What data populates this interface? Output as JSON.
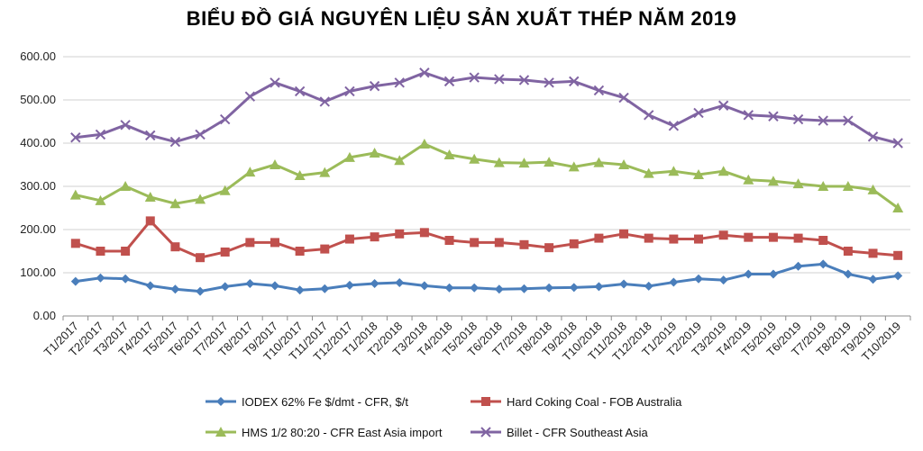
{
  "chart_data": {
    "type": "line",
    "title": "BIỂU ĐỒ GIÁ NGUYÊN LIỆU SẢN XUẤT THÉP NĂM 2019",
    "xlabel": "",
    "ylabel": "",
    "ylim": [
      0,
      600
    ],
    "y_ticks": [
      "0.00",
      "100.00",
      "200.00",
      "300.00",
      "400.00",
      "500.00",
      "600.00"
    ],
    "grid": "horizontal",
    "legend_position": "bottom",
    "categories": [
      "T1/2017",
      "T2/2017",
      "T3/2017",
      "T4/2017",
      "T5/2017",
      "T6/2017",
      "T7/2017",
      "T8/2017",
      "T9/2017",
      "T10/2017",
      "T11/2017",
      "T12/2017",
      "T1/2018",
      "T2/2018",
      "T3/2018",
      "T4/2018",
      "T5/2018",
      "T6/2018",
      "T7/2018",
      "T8/2018",
      "T9/2018",
      "T10/2018",
      "T11/2018",
      "T12/2018",
      "T1/2019",
      "T2/2019",
      "T3/2019",
      "T4/2019",
      "T5/2019",
      "T6/2019",
      "T7/2019",
      "T8/2019",
      "T9/2019",
      "T10/2019"
    ],
    "series": [
      {
        "name": "IODEX 62% Fe $/dmt - CFR, $/t",
        "color": "#4a7ebb",
        "marker": "diamond",
        "values": [
          80,
          88,
          86,
          70,
          62,
          57,
          68,
          75,
          70,
          60,
          63,
          71,
          75,
          77,
          70,
          65,
          65,
          62,
          63,
          65,
          66,
          68,
          74,
          69,
          78,
          86,
          83,
          97,
          97,
          115,
          120,
          97,
          85,
          93
        ]
      },
      {
        "name": "Hard Coking Coal - FOB Australia",
        "color": "#c0504d",
        "marker": "square",
        "values": [
          168,
          150,
          150,
          220,
          160,
          135,
          148,
          170,
          170,
          150,
          155,
          178,
          183,
          190,
          193,
          175,
          170,
          170,
          165,
          158,
          167,
          180,
          190,
          180,
          178,
          178,
          187,
          182,
          182,
          180,
          175,
          150,
          145,
          140
        ]
      },
      {
        "name": "HMS 1/2 80:20 - CFR East Asia import",
        "color": "#9bbb59",
        "marker": "triangle",
        "values": [
          280,
          267,
          300,
          275,
          260,
          270,
          290,
          333,
          350,
          325,
          332,
          367,
          377,
          360,
          398,
          373,
          363,
          355,
          354,
          356,
          345,
          355,
          350,
          330,
          335,
          327,
          335,
          315,
          312,
          306,
          300,
          300,
          292,
          250
        ]
      },
      {
        "name": "Billet - CFR Southeast Asia",
        "color": "#8064a2",
        "marker": "x",
        "values": [
          413,
          420,
          442,
          418,
          403,
          420,
          455,
          508,
          540,
          520,
          496,
          520,
          532,
          540,
          563,
          543,
          552,
          548,
          546,
          540,
          543,
          522,
          505,
          465,
          440,
          470,
          487,
          465,
          462,
          455,
          452,
          452,
          415,
          400
        ]
      }
    ]
  }
}
